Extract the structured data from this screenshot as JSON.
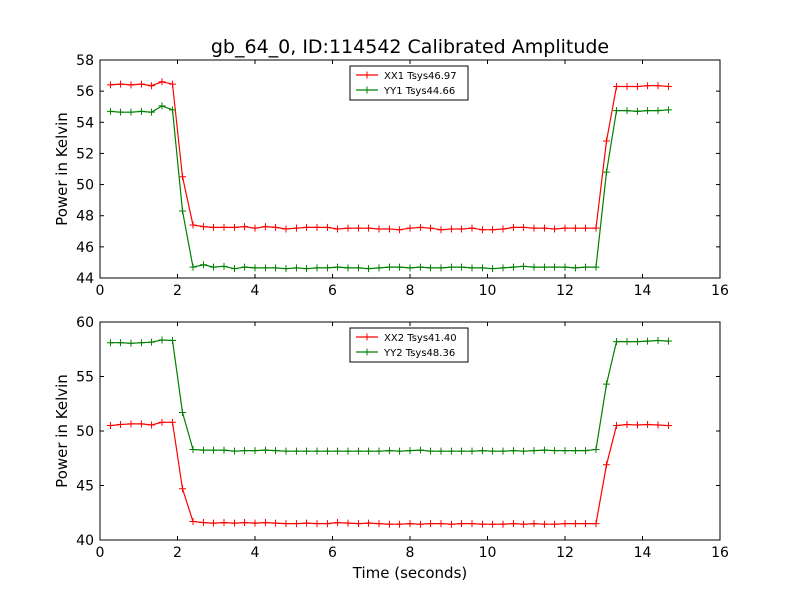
{
  "figure": {
    "title": "gb_64_0, ID:114542 Calibrated Amplitude",
    "xlabel": "Time (seconds)"
  },
  "chart_data": [
    {
      "type": "line",
      "ylabel": "Power in Kelvin",
      "xlim": [
        0,
        16
      ],
      "ylim": [
        44,
        58
      ],
      "xticks": [
        0,
        2,
        4,
        6,
        8,
        10,
        12,
        14,
        16
      ],
      "yticks": [
        44,
        46,
        48,
        50,
        52,
        54,
        56,
        58
      ],
      "grid": false,
      "legend_placement": "top-center",
      "x": [
        0.27,
        0.53,
        0.8,
        1.07,
        1.33,
        1.6,
        1.87,
        2.13,
        2.4,
        2.67,
        2.93,
        3.2,
        3.47,
        3.73,
        4.0,
        4.27,
        4.53,
        4.8,
        5.07,
        5.33,
        5.6,
        5.87,
        6.13,
        6.4,
        6.67,
        6.93,
        7.2,
        7.47,
        7.73,
        8.0,
        8.27,
        8.53,
        8.8,
        9.07,
        9.33,
        9.6,
        9.87,
        10.13,
        10.4,
        10.67,
        10.93,
        11.2,
        11.47,
        11.73,
        12.0,
        12.27,
        12.53,
        12.8,
        13.07,
        13.33,
        13.6,
        13.87,
        14.13,
        14.4,
        14.67
      ],
      "series": [
        {
          "name": "XX1 Tsys46.97",
          "color": "#ff0000",
          "values": [
            56.4,
            56.45,
            56.4,
            56.45,
            56.35,
            56.6,
            56.45,
            50.5,
            47.4,
            47.3,
            47.25,
            47.25,
            47.25,
            47.3,
            47.2,
            47.3,
            47.25,
            47.15,
            47.2,
            47.25,
            47.25,
            47.25,
            47.15,
            47.2,
            47.2,
            47.2,
            47.15,
            47.15,
            47.1,
            47.2,
            47.25,
            47.2,
            47.1,
            47.15,
            47.15,
            47.2,
            47.1,
            47.1,
            47.15,
            47.25,
            47.25,
            47.2,
            47.2,
            47.15,
            47.2,
            47.2,
            47.2,
            47.2,
            52.8,
            56.3,
            56.3,
            56.3,
            56.35,
            56.35,
            56.3
          ]
        },
        {
          "name": "YY1 Tsys44.66",
          "color": "#008000",
          "values": [
            54.7,
            54.65,
            54.65,
            54.7,
            54.65,
            55.05,
            54.8,
            48.3,
            44.7,
            44.85,
            44.7,
            44.75,
            44.6,
            44.7,
            44.65,
            44.65,
            44.65,
            44.6,
            44.65,
            44.6,
            44.65,
            44.65,
            44.7,
            44.65,
            44.65,
            44.6,
            44.65,
            44.7,
            44.7,
            44.65,
            44.7,
            44.65,
            44.65,
            44.7,
            44.7,
            44.65,
            44.65,
            44.6,
            44.65,
            44.7,
            44.75,
            44.7,
            44.7,
            44.7,
            44.7,
            44.65,
            44.7,
            44.7,
            50.8,
            54.75,
            54.75,
            54.7,
            54.75,
            54.75,
            54.8
          ]
        }
      ]
    },
    {
      "type": "line",
      "ylabel": "Power in Kelvin",
      "xlabel": "Time (seconds)",
      "xlim": [
        0,
        16
      ],
      "ylim": [
        40,
        60
      ],
      "xticks": [
        0,
        2,
        4,
        6,
        8,
        10,
        12,
        14,
        16
      ],
      "yticks": [
        40,
        45,
        50,
        55,
        60
      ],
      "grid": false,
      "legend_placement": "top-center",
      "x": [
        0.27,
        0.53,
        0.8,
        1.07,
        1.33,
        1.6,
        1.87,
        2.13,
        2.4,
        2.67,
        2.93,
        3.2,
        3.47,
        3.73,
        4.0,
        4.27,
        4.53,
        4.8,
        5.07,
        5.33,
        5.6,
        5.87,
        6.13,
        6.4,
        6.67,
        6.93,
        7.2,
        7.47,
        7.73,
        8.0,
        8.27,
        8.53,
        8.8,
        9.07,
        9.33,
        9.6,
        9.87,
        10.13,
        10.4,
        10.67,
        10.93,
        11.2,
        11.47,
        11.73,
        12.0,
        12.27,
        12.53,
        12.8,
        13.07,
        13.33,
        13.6,
        13.87,
        14.13,
        14.4,
        14.67
      ],
      "series": [
        {
          "name": "XX2 Tsys41.40",
          "color": "#ff0000",
          "values": [
            50.5,
            50.6,
            50.65,
            50.65,
            50.55,
            50.8,
            50.8,
            44.7,
            41.7,
            41.6,
            41.55,
            41.6,
            41.55,
            41.6,
            41.55,
            41.6,
            41.55,
            41.5,
            41.5,
            41.55,
            41.5,
            41.5,
            41.6,
            41.55,
            41.5,
            41.55,
            41.5,
            41.45,
            41.45,
            41.5,
            41.45,
            41.5,
            41.5,
            41.45,
            41.5,
            41.5,
            41.45,
            41.45,
            41.45,
            41.5,
            41.45,
            41.5,
            41.45,
            41.45,
            41.5,
            41.5,
            41.5,
            41.5,
            46.9,
            50.5,
            50.6,
            50.55,
            50.6,
            50.55,
            50.5
          ]
        },
        {
          "name": "YY2 Tsys48.36",
          "color": "#008000",
          "values": [
            58.1,
            58.1,
            58.05,
            58.1,
            58.15,
            58.35,
            58.3,
            51.7,
            48.3,
            48.25,
            48.25,
            48.25,
            48.15,
            48.2,
            48.2,
            48.25,
            48.2,
            48.15,
            48.15,
            48.15,
            48.15,
            48.15,
            48.15,
            48.15,
            48.15,
            48.15,
            48.15,
            48.2,
            48.15,
            48.2,
            48.25,
            48.15,
            48.15,
            48.15,
            48.15,
            48.15,
            48.2,
            48.15,
            48.15,
            48.2,
            48.15,
            48.2,
            48.25,
            48.2,
            48.2,
            48.2,
            48.2,
            48.3,
            54.3,
            58.2,
            58.2,
            58.2,
            58.25,
            58.3,
            58.25
          ]
        }
      ]
    }
  ]
}
